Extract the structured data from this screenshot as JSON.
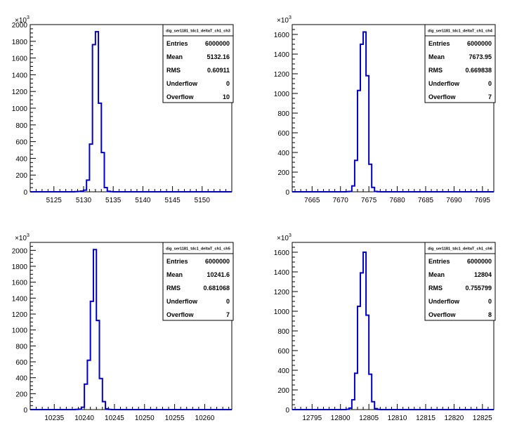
{
  "chart_data": [
    {
      "type": "histogram",
      "stats_title": "dig_ser1181_tdc1_deltaT_ch1_ch3",
      "exponent_label": "×10",
      "exponent_power": "3",
      "stats": [
        {
          "label": "Entries",
          "value": "6000000"
        },
        {
          "label": "Mean",
          "value": "5132.16"
        },
        {
          "label": "RMS",
          "value": "0.60911"
        },
        {
          "label": "Underflow",
          "value": "0"
        },
        {
          "label": "Overflow",
          "value": "10"
        }
      ],
      "xlim": [
        5121,
        5155
      ],
      "ylim": [
        0,
        2000
      ],
      "xticks": [
        5125,
        5130,
        5135,
        5140,
        5145,
        5150
      ],
      "xtick_labels": [
        "5125",
        "5130",
        "5135",
        "5140",
        "5145",
        "5150"
      ],
      "yticks": [
        0,
        200,
        400,
        600,
        800,
        1000,
        1200,
        1400,
        1600,
        1800,
        2000
      ],
      "ytick_labels": [
        "0",
        "200",
        "400",
        "600",
        "800",
        "1000",
        "1200",
        "1400",
        "1600",
        "1800",
        "2000"
      ],
      "bin_width": 0.5,
      "bins": [
        [
          5128.5,
          2
        ],
        [
          5129.0,
          4
        ],
        [
          5129.5,
          8
        ],
        [
          5130.0,
          20
        ],
        [
          5130.5,
          140
        ],
        [
          5131.0,
          570
        ],
        [
          5131.5,
          1760
        ],
        [
          5132.0,
          1915
        ],
        [
          5132.5,
          1060
        ],
        [
          5133.0,
          470
        ],
        [
          5133.5,
          50
        ],
        [
          5134.0,
          6
        ],
        [
          5134.5,
          2
        ]
      ]
    },
    {
      "type": "histogram",
      "stats_title": "dig_ser1181_tdc1_deltaT_ch1_ch4",
      "exponent_label": "×10",
      "exponent_power": "3",
      "stats": [
        {
          "label": "Entries",
          "value": "6000000"
        },
        {
          "label": "Mean",
          "value": "7673.95"
        },
        {
          "label": "RMS",
          "value": "0.669838"
        },
        {
          "label": "Underflow",
          "value": "0"
        },
        {
          "label": "Overflow",
          "value": "7"
        }
      ],
      "xlim": [
        7661.5,
        7697
      ],
      "ylim": [
        0,
        1700
      ],
      "xticks": [
        7665,
        7670,
        7675,
        7680,
        7685,
        7690,
        7695
      ],
      "xtick_labels": [
        "7665",
        "7670",
        "7675",
        "7680",
        "7685",
        "7690",
        "7695"
      ],
      "yticks": [
        0,
        200,
        400,
        600,
        800,
        1000,
        1200,
        1400,
        1600
      ],
      "ytick_labels": [
        "0",
        "200",
        "400",
        "600",
        "800",
        "1000",
        "1200",
        "1400",
        "1600"
      ],
      "bin_width": 0.5,
      "bins": [
        [
          7671.0,
          2
        ],
        [
          7671.5,
          4
        ],
        [
          7672.0,
          60
        ],
        [
          7672.5,
          320
        ],
        [
          7673.0,
          1030
        ],
        [
          7673.5,
          1500
        ],
        [
          7674.0,
          1625
        ],
        [
          7674.5,
          1180
        ],
        [
          7675.0,
          280
        ],
        [
          7675.5,
          45
        ],
        [
          7676.0,
          4
        ],
        [
          7676.5,
          1
        ]
      ]
    },
    {
      "type": "histogram",
      "stats_title": "dig_ser1181_tdc1_deltaT_ch1_ch5",
      "exponent_label": "×10",
      "exponent_power": "3",
      "stats": [
        {
          "label": "Entries",
          "value": "6000000"
        },
        {
          "label": "Mean",
          "value": "10241.6"
        },
        {
          "label": "RMS",
          "value": "0.681068"
        },
        {
          "label": "Underflow",
          "value": "0"
        },
        {
          "label": "Overflow",
          "value": "7"
        }
      ],
      "xlim": [
        10231,
        10264.5
      ],
      "ylim": [
        0,
        2100
      ],
      "xticks": [
        10235,
        10240,
        10245,
        10250,
        10255,
        10260
      ],
      "xtick_labels": [
        "10235",
        "10240",
        "10245",
        "10250",
        "10255",
        "10260"
      ],
      "yticks": [
        0,
        200,
        400,
        600,
        800,
        1000,
        1200,
        1400,
        1600,
        1800,
        2000
      ],
      "ytick_labels": [
        "0",
        "200",
        "400",
        "600",
        "800",
        "1000",
        "1200",
        "1400",
        "1600",
        "1800",
        "2000"
      ],
      "bin_width": 0.5,
      "bins": [
        [
          10238.5,
          2
        ],
        [
          10239.0,
          6
        ],
        [
          10239.5,
          30
        ],
        [
          10240.0,
          320
        ],
        [
          10240.5,
          620
        ],
        [
          10241.0,
          1360
        ],
        [
          10241.5,
          2010
        ],
        [
          10242.0,
          1120
        ],
        [
          10242.5,
          390
        ],
        [
          10243.0,
          100
        ],
        [
          10243.5,
          10
        ],
        [
          10244.0,
          2
        ]
      ]
    },
    {
      "type": "histogram",
      "stats_title": "dig_ser1181_tdc1_deltaT_ch1_ch6",
      "exponent_label": "×10",
      "exponent_power": "3",
      "stats": [
        {
          "label": "Entries",
          "value": "6000000"
        },
        {
          "label": "Mean",
          "value": "12804"
        },
        {
          "label": "RMS",
          "value": "0.755799"
        },
        {
          "label": "Underflow",
          "value": "0"
        },
        {
          "label": "Overflow",
          "value": "8"
        }
      ],
      "xlim": [
        12791.5,
        12827
      ],
      "ylim": [
        0,
        1700
      ],
      "xticks": [
        12795,
        12800,
        12805,
        12810,
        12815,
        12820,
        12825
      ],
      "xtick_labels": [
        "12795",
        "12800",
        "12805",
        "12810",
        "12815",
        "12820",
        "12825"
      ],
      "yticks": [
        0,
        200,
        400,
        600,
        800,
        1000,
        1200,
        1400,
        1600
      ],
      "ytick_labels": [
        "0",
        "200",
        "400",
        "600",
        "800",
        "1000",
        "1200",
        "1400",
        "1600"
      ],
      "bin_width": 0.5,
      "bins": [
        [
          12801.0,
          3
        ],
        [
          12801.5,
          15
        ],
        [
          12802.0,
          100
        ],
        [
          12802.5,
          370
        ],
        [
          12803.0,
          1050
        ],
        [
          12803.5,
          1390
        ],
        [
          12804.0,
          1600
        ],
        [
          12804.5,
          960
        ],
        [
          12805.0,
          360
        ],
        [
          12805.5,
          80
        ],
        [
          12806.0,
          10
        ],
        [
          12806.5,
          2
        ]
      ]
    }
  ]
}
